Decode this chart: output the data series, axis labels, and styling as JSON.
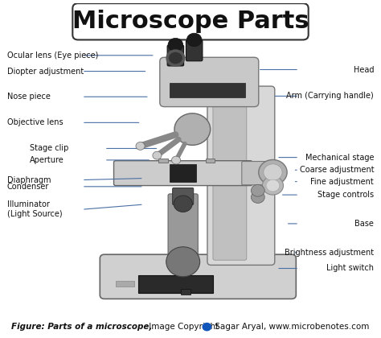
{
  "title": "Microscope Parts",
  "title_fontsize": 22,
  "title_fontweight": "bold",
  "title_box_color": "#ffffff",
  "title_box_edgecolor": "#333333",
  "background_color": "#ffffff",
  "caption_bold": "Figure: Parts of a microscope,",
  "caption_normal": " Image Copyright ",
  "caption_url": " Sagar Aryal, www.microbenotes.com",
  "caption_fontsize": 7.5,
  "line_color": "#4a6fa5",
  "line_width": 0.8,
  "label_fontsize": 7.0,
  "left_labels": [
    {
      "text": "Ocular lens (Eye piece)",
      "xpt": 0.405,
      "ypt": 0.843,
      "xtxt": 0.01,
      "ytxt": 0.843
    },
    {
      "text": "Diopter adjustment",
      "xpt": 0.385,
      "ypt": 0.795,
      "xtxt": 0.01,
      "ytxt": 0.795
    },
    {
      "text": "Nose piece",
      "xpt": 0.39,
      "ypt": 0.718,
      "xtxt": 0.01,
      "ytxt": 0.718
    },
    {
      "text": "Objective lens",
      "xpt": 0.368,
      "ypt": 0.64,
      "xtxt": 0.01,
      "ytxt": 0.64
    },
    {
      "text": "Stage clip",
      "xpt": 0.415,
      "ypt": 0.562,
      "xtxt": 0.07,
      "ytxt": 0.562
    },
    {
      "text": "Aperture",
      "xpt": 0.395,
      "ypt": 0.527,
      "xtxt": 0.07,
      "ytxt": 0.527
    },
    {
      "text": "Diaphragm",
      "xpt": 0.375,
      "ypt": 0.472,
      "xtxt": 0.01,
      "ytxt": 0.467
    },
    {
      "text": "Condenser",
      "xpt": 0.375,
      "ypt": 0.447,
      "xtxt": 0.01,
      "ytxt": 0.447
    },
    {
      "text": "Illuminator\n(Light Source)",
      "xpt": 0.375,
      "ypt": 0.393,
      "xtxt": 0.01,
      "ytxt": 0.378
    }
  ],
  "right_labels": [
    {
      "text": "Head",
      "xpt": 0.68,
      "ypt": 0.8,
      "xtxt": 0.99,
      "ytxt": 0.8
    },
    {
      "text": "Arm (Carrying handle)",
      "xpt": 0.72,
      "ypt": 0.72,
      "xtxt": 0.99,
      "ytxt": 0.72
    },
    {
      "text": "Mechanical stage",
      "xpt": 0.73,
      "ypt": 0.535,
      "xtxt": 0.99,
      "ytxt": 0.535
    },
    {
      "text": "Coarse adjustment",
      "xpt": 0.78,
      "ypt": 0.497,
      "xtxt": 0.99,
      "ytxt": 0.497
    },
    {
      "text": "Fine adjustment",
      "xpt": 0.78,
      "ypt": 0.462,
      "xtxt": 0.99,
      "ytxt": 0.462
    },
    {
      "text": "Stage controls",
      "xpt": 0.74,
      "ypt": 0.422,
      "xtxt": 0.99,
      "ytxt": 0.422
    },
    {
      "text": "Base",
      "xpt": 0.755,
      "ypt": 0.335,
      "xtxt": 0.99,
      "ytxt": 0.335
    },
    {
      "text": "Brightness adjustment",
      "xpt": 0.78,
      "ypt": 0.248,
      "xtxt": 0.99,
      "ytxt": 0.248
    },
    {
      "text": "Light switch",
      "xpt": 0.73,
      "ypt": 0.2,
      "xtxt": 0.99,
      "ytxt": 0.2
    }
  ]
}
